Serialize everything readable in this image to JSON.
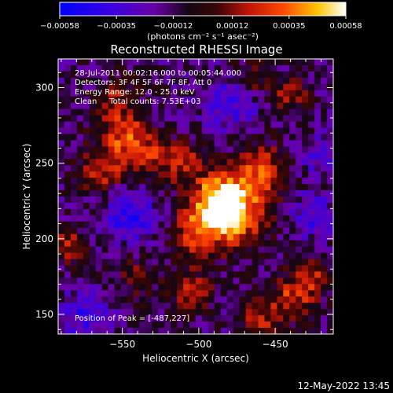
{
  "chart_data": {
    "type": "heatmap",
    "title": "Reconstructed RHESSI Image",
    "xlabel": "Heliocentric X (arcsec)",
    "ylabel": "Heliocentric Y (arcsec)",
    "xlim": [
      -592,
      -412
    ],
    "ylim": [
      137,
      319
    ],
    "xticks": [
      -550,
      -500,
      -450
    ],
    "yticks": [
      150,
      200,
      250,
      300
    ],
    "xtick_labels": [
      "−550",
      "−500",
      "−450"
    ],
    "ytick_labels": [
      "150",
      "200",
      "250",
      "300"
    ],
    "colorbar": {
      "min": -0.00058,
      "max": 0.00058,
      "ticks": [
        -0.00058,
        -0.00035,
        -0.00012,
        0.00012,
        0.00035,
        0.00058
      ],
      "tick_labels": [
        "−0.00058",
        "−0.00035",
        "−0.00012",
        "0.00012",
        "0.00035",
        "0.00058"
      ],
      "units_label": "(photons cm⁻² s⁻¹ asec⁻²)",
      "colors": [
        "#0000ff",
        "#5a00c8",
        "#1a0a1a",
        "#8a1010",
        "#ff3000",
        "#ffcc00",
        "#ffffff"
      ]
    },
    "info_lines": [
      "28-Jul-2011 00:02:16.000 to 00:05:44.000",
      "Detectors: 3F 4F 5F 6F 7F 8F, Att 0",
      "Energy Range: 12.0 - 25.0 keV",
      "Clean     Total counts: 7.53E+03"
    ],
    "peak_label": "Position of Peak = [-487,227]",
    "peak": [
      -487,
      227
    ],
    "emission_regions": [
      {
        "x": -487,
        "y": 227,
        "peak": 1.0,
        "sigma": 11
      },
      {
        "x": -475,
        "y": 215,
        "peak": 0.85,
        "sigma": 14
      },
      {
        "x": -500,
        "y": 205,
        "peak": 0.7,
        "sigma": 12
      },
      {
        "x": -460,
        "y": 245,
        "peak": 0.7,
        "sigma": 12
      },
      {
        "x": -510,
        "y": 250,
        "peak": 0.55,
        "sigma": 10
      },
      {
        "x": -550,
        "y": 270,
        "peak": 0.65,
        "sigma": 12
      },
      {
        "x": -565,
        "y": 245,
        "peak": 0.6,
        "sigma": 10
      },
      {
        "x": -535,
        "y": 255,
        "peak": 0.55,
        "sigma": 10
      },
      {
        "x": -585,
        "y": 195,
        "peak": 0.6,
        "sigma": 8
      },
      {
        "x": -440,
        "y": 160,
        "peak": 0.6,
        "sigma": 10
      },
      {
        "x": -425,
        "y": 175,
        "peak": 0.5,
        "sigma": 9
      },
      {
        "x": -460,
        "y": 145,
        "peak": 0.55,
        "sigma": 9
      },
      {
        "x": -505,
        "y": 165,
        "peak": 0.5,
        "sigma": 10
      },
      {
        "x": -440,
        "y": 295,
        "peak": 0.5,
        "sigma": 8
      },
      {
        "x": -465,
        "y": 305,
        "peak": 0.4,
        "sigma": 8
      },
      {
        "x": -555,
        "y": 295,
        "peak": 0.35,
        "sigma": 9
      },
      {
        "x": -540,
        "y": 175,
        "peak": 0.35,
        "sigma": 9
      }
    ],
    "negative_regions": [
      {
        "x": -545,
        "y": 215,
        "peak": -0.55,
        "sigma": 11
      },
      {
        "x": -480,
        "y": 290,
        "peak": -0.45,
        "sigma": 12
      },
      {
        "x": -425,
        "y": 215,
        "peak": -0.4,
        "sigma": 10
      },
      {
        "x": -575,
        "y": 150,
        "peak": -0.5,
        "sigma": 10
      },
      {
        "x": -420,
        "y": 255,
        "peak": -0.35,
        "sigma": 9
      }
    ]
  },
  "footer": {
    "timestamp": "12-May-2022 13:45"
  }
}
